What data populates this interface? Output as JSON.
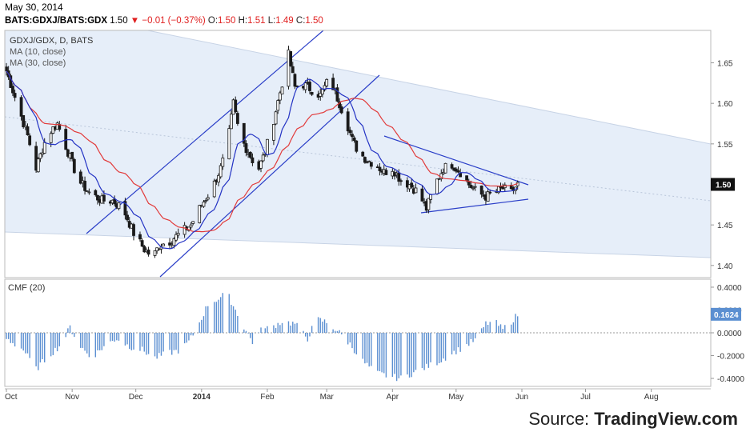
{
  "header": {
    "date": "May 30, 2014",
    "symbol": "BATS:GDXJ/BATS:GDX",
    "last": "1.50",
    "change": "−0.01 (−0.37%)",
    "open_label": "O:",
    "open": "1.50",
    "high_label": "H:",
    "high": "1.51",
    "low_label": "L:",
    "low": "1.49",
    "close_label": "C:",
    "close": "1.50"
  },
  "legend": {
    "title": "GDXJ/GDX, D, BATS",
    "ma10": "MA (10, close)",
    "ma30": "MA (30, close)"
  },
  "cmf_label": "CMF (20)",
  "source_prefix": "Source: ",
  "source_name": "TradingView.com",
  "colors": {
    "channel_fill": "#e6eef9",
    "channel_border": "#c8d4e6",
    "trendline": "#2a3ec8",
    "ma10": "#2433c4",
    "ma30": "#e23a3a",
    "cmf_bar": "#5b8fd1",
    "candle": "#1a1a1a",
    "price_tag_bg": "#111111",
    "cmf_tag_bg": "#5b8fd1"
  },
  "chart_data": {
    "type": "candlestick",
    "price_axis": {
      "ticks": [
        "1.65",
        "1.60",
        "1.55",
        "1.45",
        "1.40"
      ],
      "range": [
        1.385,
        1.69
      ]
    },
    "price_tag": "1.50",
    "x_ticks": [
      "Oct",
      "Nov",
      "Dec",
      "2014",
      "Feb",
      "Mar",
      "Apr",
      "May",
      "Jun",
      "Jul",
      "Aug"
    ],
    "x_tick_positions_days": [
      0,
      31,
      61,
      92,
      123,
      151,
      182,
      212,
      243,
      273,
      304
    ],
    "cmf_axis": {
      "ticks": [
        "0.4000",
        "0.2000",
        "0.0000",
        "-0.2000",
        "-0.4000"
      ],
      "range": [
        -0.47,
        0.47
      ]
    },
    "cmf_tag": "0.1624",
    "closes_keypoints": [
      [
        0,
        1.64
      ],
      [
        5,
        1.6
      ],
      [
        10,
        1.56
      ],
      [
        14,
        1.52
      ],
      [
        19,
        1.56
      ],
      [
        24,
        1.575
      ],
      [
        29,
        1.54
      ],
      [
        34,
        1.505
      ],
      [
        39,
        1.49
      ],
      [
        45,
        1.48
      ],
      [
        50,
        1.48
      ],
      [
        55,
        1.47
      ],
      [
        60,
        1.44
      ],
      [
        65,
        1.42
      ],
      [
        69,
        1.41
      ],
      [
        72,
        1.425
      ],
      [
        77,
        1.43
      ],
      [
        82,
        1.44
      ],
      [
        87,
        1.45
      ],
      [
        92,
        1.475
      ],
      [
        97,
        1.495
      ],
      [
        101,
        1.52
      ],
      [
        104,
        1.545
      ],
      [
        107,
        1.6
      ],
      [
        110,
        1.56
      ],
      [
        113,
        1.545
      ],
      [
        116,
        1.53
      ],
      [
        119,
        1.52
      ],
      [
        122,
        1.54
      ],
      [
        126,
        1.58
      ],
      [
        130,
        1.625
      ],
      [
        133,
        1.66
      ],
      [
        136,
        1.62
      ],
      [
        139,
        1.625
      ],
      [
        142,
        1.62
      ],
      [
        145,
        1.615
      ],
      [
        148,
        1.61
      ],
      [
        151,
        1.625
      ],
      [
        154,
        1.62
      ],
      [
        157,
        1.6
      ],
      [
        160,
        1.58
      ],
      [
        163,
        1.555
      ],
      [
        166,
        1.54
      ],
      [
        170,
        1.53
      ],
      [
        174,
        1.525
      ],
      [
        178,
        1.515
      ],
      [
        182,
        1.52
      ],
      [
        186,
        1.505
      ],
      [
        190,
        1.5
      ],
      [
        194,
        1.49
      ],
      [
        198,
        1.47
      ],
      [
        202,
        1.5
      ],
      [
        206,
        1.52
      ],
      [
        210,
        1.525
      ],
      [
        214,
        1.515
      ],
      [
        218,
        1.5
      ],
      [
        222,
        1.49
      ],
      [
        226,
        1.485
      ],
      [
        230,
        1.49
      ],
      [
        234,
        1.495
      ],
      [
        238,
        1.49
      ],
      [
        241,
        1.5
      ]
    ],
    "cmf_keypoints": [
      [
        0,
        -0.05
      ],
      [
        8,
        -0.15
      ],
      [
        14,
        -0.32
      ],
      [
        20,
        -0.2
      ],
      [
        26,
        -0.1
      ],
      [
        30,
        0.05
      ],
      [
        34,
        -0.1
      ],
      [
        40,
        -0.22
      ],
      [
        46,
        -0.12
      ],
      [
        52,
        -0.05
      ],
      [
        58,
        -0.12
      ],
      [
        64,
        -0.15
      ],
      [
        70,
        -0.22
      ],
      [
        76,
        -0.18
      ],
      [
        82,
        -0.15
      ],
      [
        86,
        -0.08
      ],
      [
        90,
        0.05
      ],
      [
        95,
        0.25
      ],
      [
        100,
        0.3
      ],
      [
        104,
        0.35
      ],
      [
        108,
        0.2
      ],
      [
        112,
        0.05
      ],
      [
        116,
        -0.08
      ],
      [
        120,
        0.02
      ],
      [
        125,
        0.05
      ],
      [
        130,
        0.1
      ],
      [
        136,
        0.08
      ],
      [
        142,
        -0.05
      ],
      [
        146,
        0.12
      ],
      [
        150,
        0.1
      ],
      [
        156,
        0.02
      ],
      [
        162,
        -0.1
      ],
      [
        168,
        -0.25
      ],
      [
        174,
        -0.35
      ],
      [
        180,
        -0.38
      ],
      [
        186,
        -0.4
      ],
      [
        192,
        -0.35
      ],
      [
        198,
        -0.3
      ],
      [
        204,
        -0.25
      ],
      [
        210,
        -0.18
      ],
      [
        216,
        -0.12
      ],
      [
        222,
        -0.05
      ],
      [
        226,
        0.08
      ],
      [
        230,
        0.1
      ],
      [
        234,
        0.03
      ],
      [
        238,
        0.1
      ],
      [
        241,
        0.16
      ]
    ]
  }
}
